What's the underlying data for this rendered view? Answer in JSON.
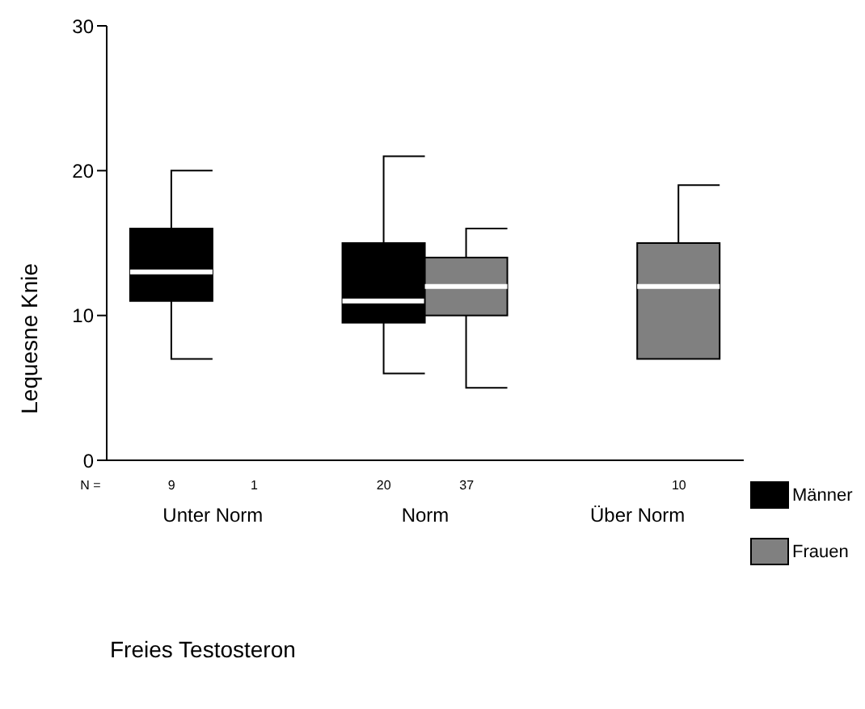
{
  "chart_data": {
    "type": "box",
    "xlabel": "Freies Testosteron",
    "ylabel": "Lequesne Knie",
    "categories": [
      "Unter Norm",
      "Norm",
      "Über Norm"
    ],
    "ylim": [
      0,
      30
    ],
    "yticks": [
      0,
      10,
      20,
      30
    ],
    "grid": false,
    "legend": "right",
    "series": [
      {
        "name": "Männer",
        "color": "#000000",
        "boxes": [
          {
            "low": 7,
            "q1": 11,
            "median": 13,
            "q3": 16,
            "high": 20
          },
          {
            "low": 6,
            "q1": 9.5,
            "median": 11,
            "q3": 15,
            "high": 21
          },
          null
        ]
      },
      {
        "name": "Frauen",
        "color": "#808080",
        "boxes": [
          null,
          {
            "low": 5,
            "q1": 10,
            "median": 12,
            "q3": 14,
            "high": 16
          },
          {
            "low": 7,
            "q1": 7,
            "median": 12,
            "q3": 15,
            "high": 19
          }
        ]
      }
    ],
    "annotations": [
      "N =",
      "9",
      "1",
      "20",
      "37",
      "10"
    ]
  }
}
